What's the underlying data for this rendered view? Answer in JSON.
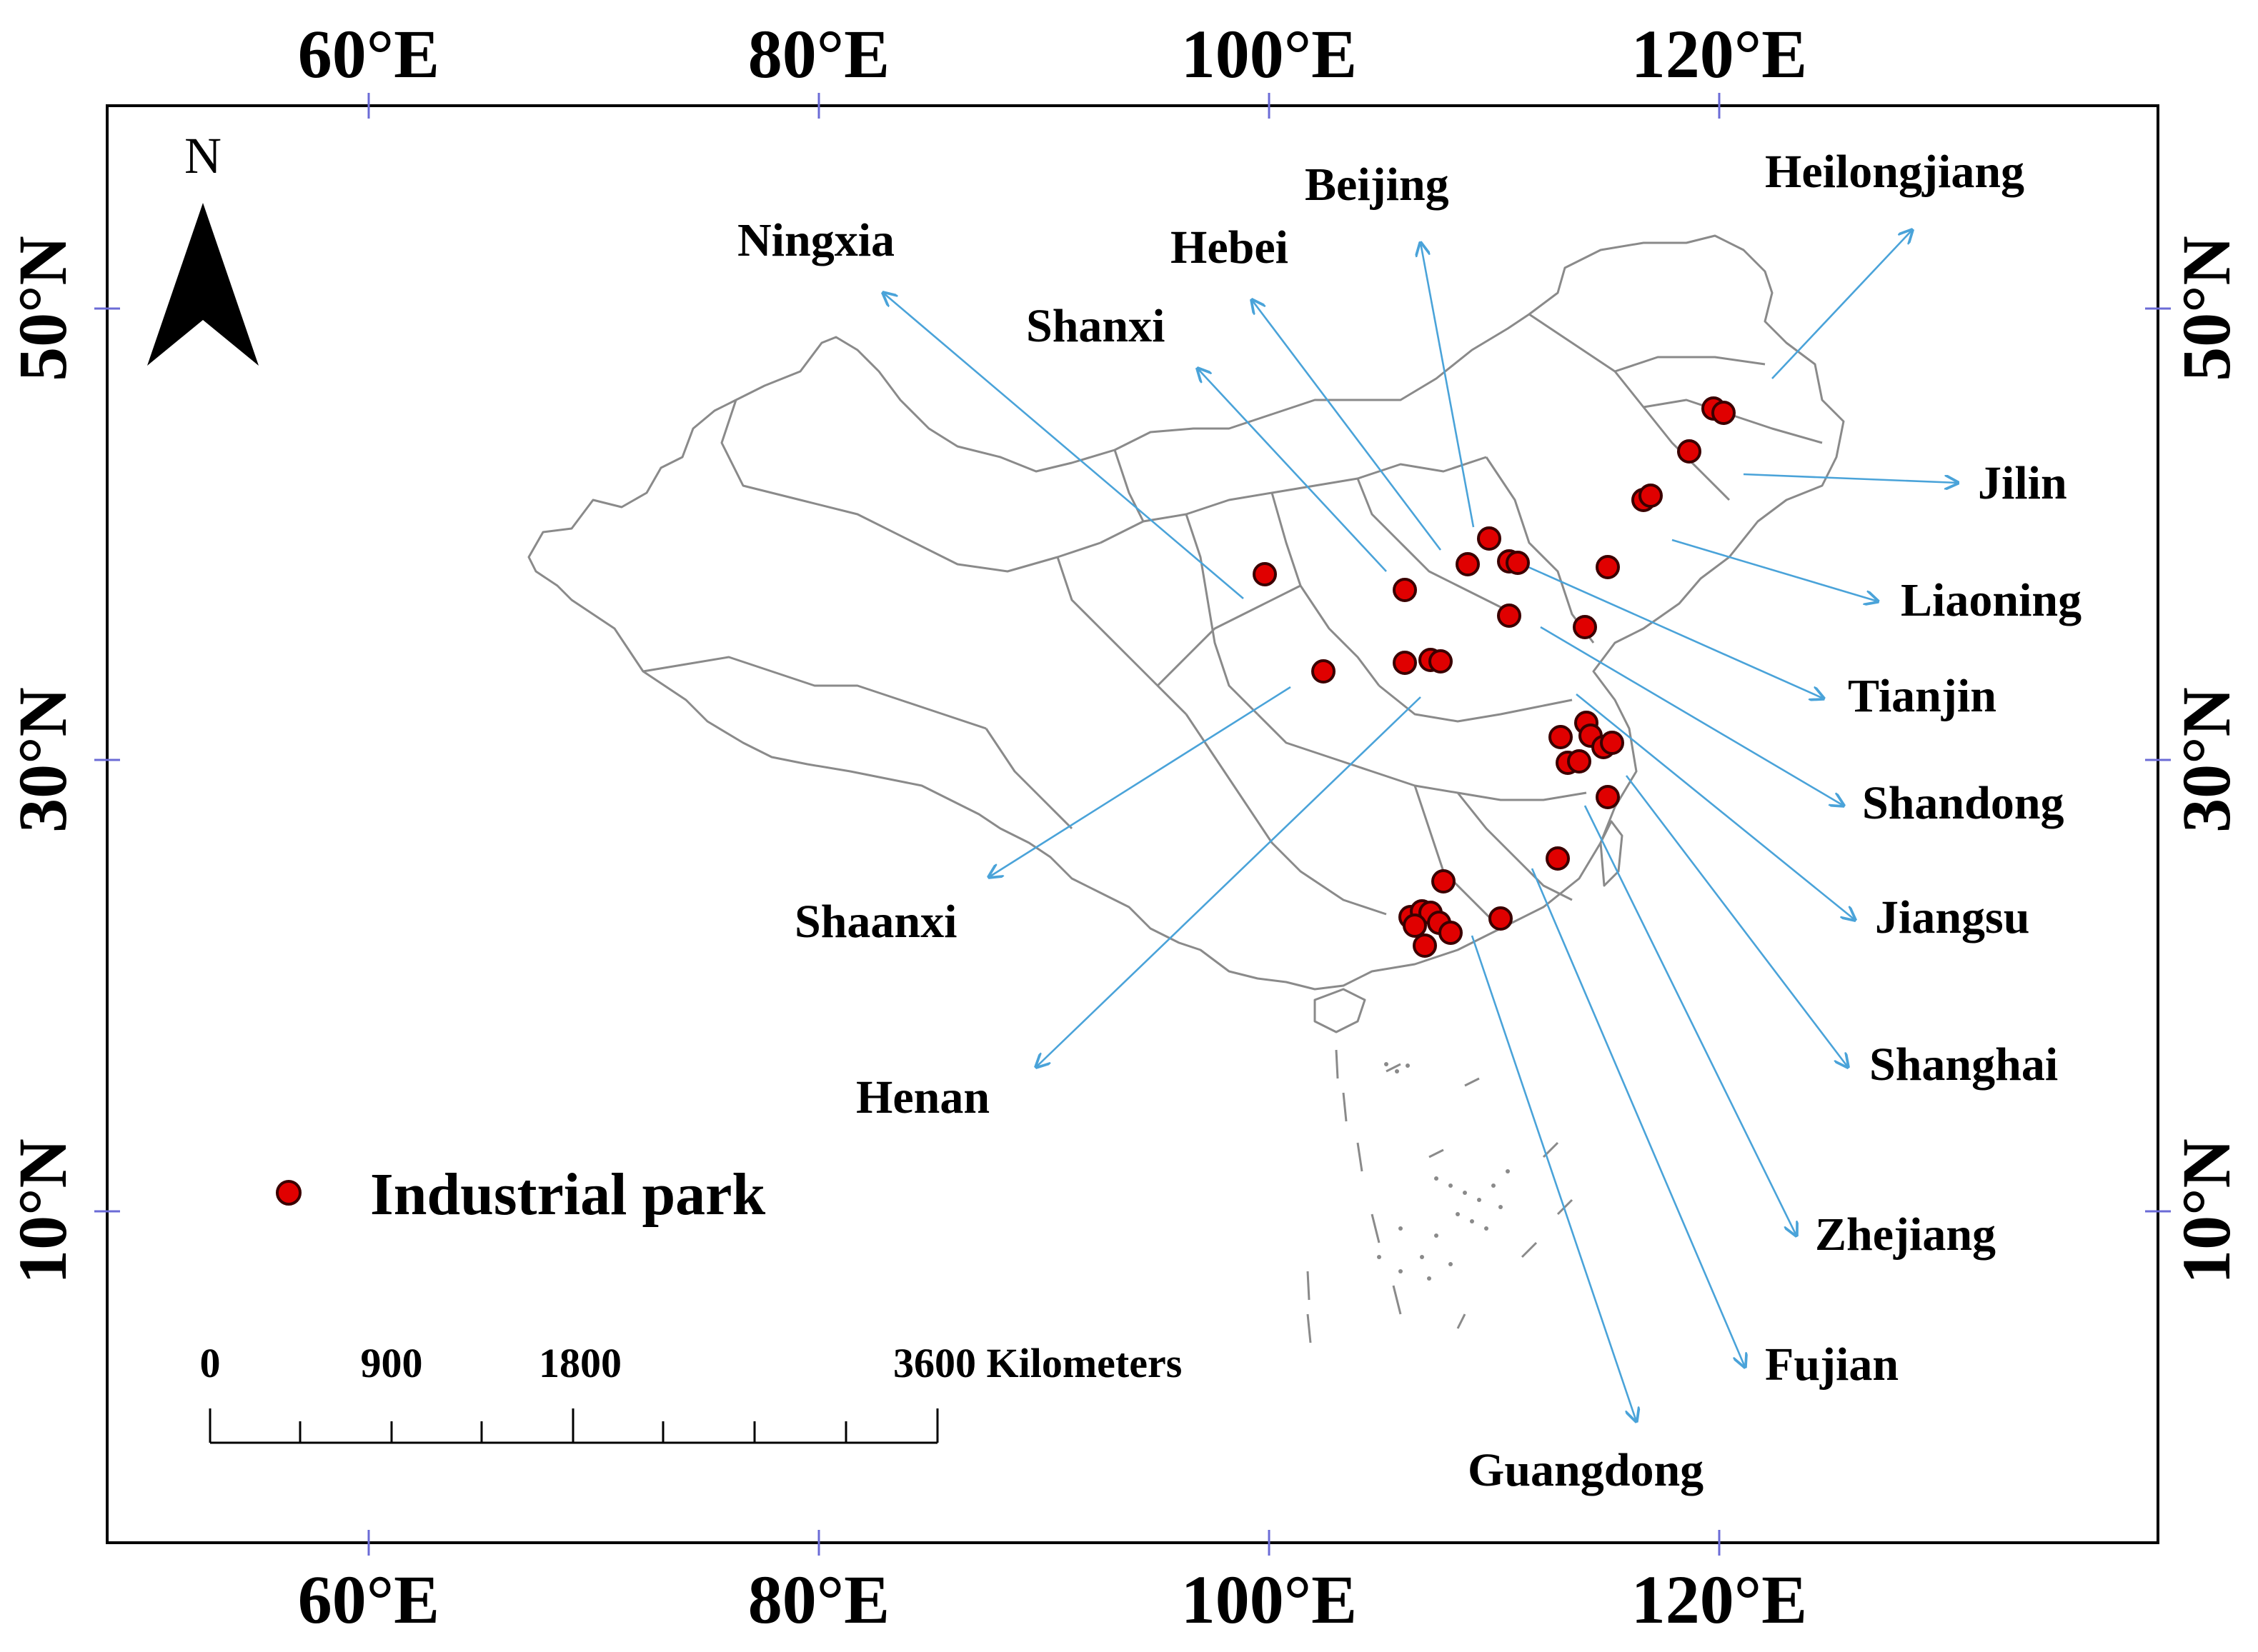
{
  "map": {
    "north_label": "N",
    "top_axis_labels": [
      "60°E",
      "80°E",
      "100°E",
      "120°E"
    ],
    "bottom_axis_labels": [
      "60°E",
      "80°E",
      "100°E",
      "120°E"
    ],
    "left_axis_labels": [
      "50°N",
      "30°N",
      "10°N"
    ],
    "right_axis_labels": [
      "50°N",
      "30°N",
      "10°N"
    ],
    "legend_label": "Industrial park",
    "scale_labels": [
      "0",
      "900",
      "1800",
      "3600 Kilometers"
    ],
    "provinces": [
      "Ningxia",
      "Hebei",
      "Beijing",
      "Heilongjiang",
      "Shanxi",
      "Jilin",
      "Liaoning",
      "Tianjin",
      "Shandong",
      "Jiangsu",
      "Shanghai",
      "Zhejiang",
      "Fujian",
      "Guangdong",
      "Henan",
      "Shaanxi"
    ],
    "colors": {
      "park": "#e00000",
      "leader": "#4aa3d9",
      "border": "#8a8a8a"
    }
  }
}
